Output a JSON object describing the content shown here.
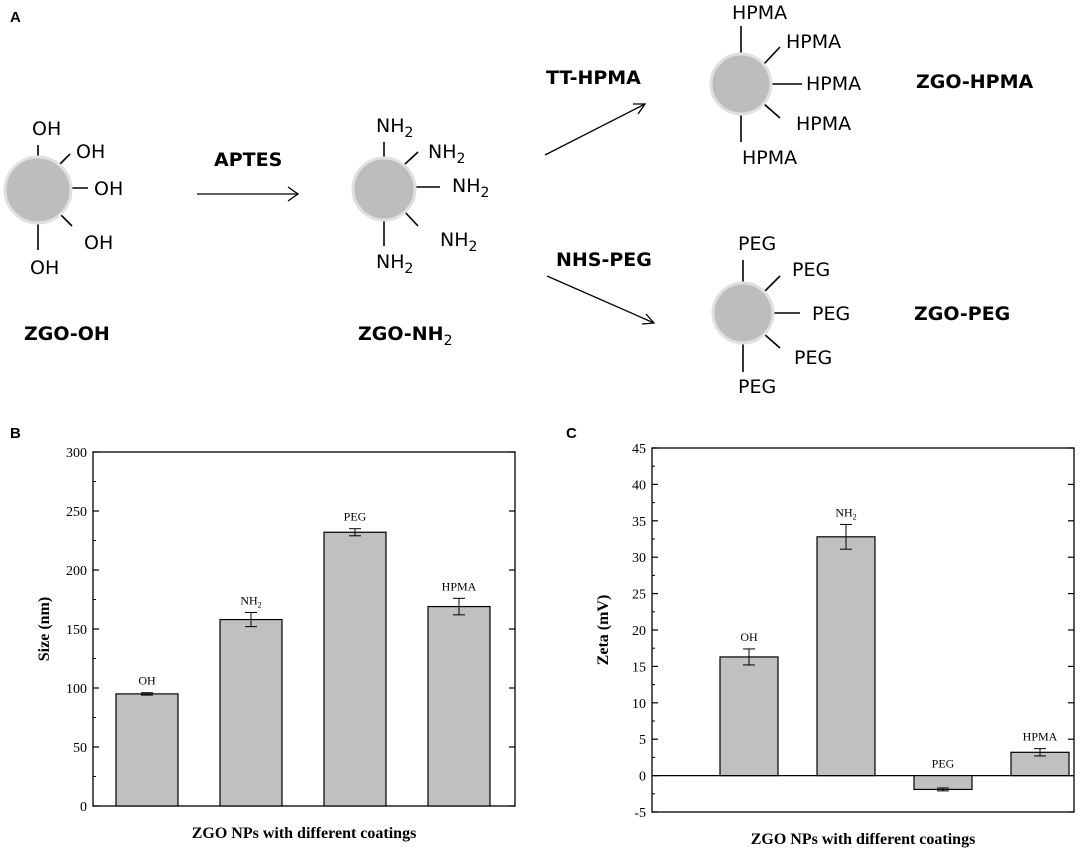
{
  "scheme": {
    "panel_label": "A",
    "particles": [
      {
        "id": "zgo-oh",
        "name": "ZGO-OH",
        "ligand": "OH"
      },
      {
        "id": "zgo-nh2",
        "name_main": "ZGO-NH",
        "name_sub": "2",
        "ligand_main": "NH",
        "ligand_sub": "2"
      },
      {
        "id": "zgo-hpma",
        "name": "ZGO-HPMA",
        "ligand": "HPMA"
      },
      {
        "id": "zgo-peg",
        "name": "ZGO-PEG",
        "ligand": "PEG"
      }
    ],
    "reagents": {
      "step1": "APTES",
      "step2a": "TT-HPMA",
      "step2b": "NHS-PEG"
    }
  },
  "chart_data": [
    {
      "panel_label": "B",
      "type": "bar",
      "categories": [
        "OH",
        "NH2",
        "PEG",
        "HPMA"
      ],
      "category_labels": [
        {
          "main": "OH",
          "sub": ""
        },
        {
          "main": "NH",
          "sub": "2"
        },
        {
          "main": "PEG",
          "sub": ""
        },
        {
          "main": "HPMA",
          "sub": ""
        }
      ],
      "values": [
        95,
        158,
        232,
        169
      ],
      "errors": [
        1,
        6,
        3,
        7
      ],
      "xlabel": "ZGO NPs with different coatings",
      "ylabel": "Size (nm)",
      "ylim": [
        0,
        300
      ],
      "yticks": [
        0,
        50,
        100,
        150,
        200,
        250,
        300
      ],
      "bar_color": "#c0c0c0"
    },
    {
      "panel_label": "C",
      "type": "bar",
      "categories": [
        "OH",
        "NH2",
        "PEG",
        "HPMA"
      ],
      "category_labels": [
        {
          "main": "OH",
          "sub": ""
        },
        {
          "main": "NH",
          "sub": "2"
        },
        {
          "main": "PEG",
          "sub": ""
        },
        {
          "main": "HPMA",
          "sub": ""
        }
      ],
      "values": [
        16.3,
        32.8,
        -1.9,
        3.2
      ],
      "errors": [
        1.1,
        1.7,
        0.2,
        0.5
      ],
      "xlabel": "ZGO NPs with different coatings",
      "ylabel": "Zeta (mV)",
      "ylim": [
        -5,
        45
      ],
      "yticks": [
        -5,
        0,
        5,
        10,
        15,
        20,
        25,
        30,
        35,
        40,
        45
      ],
      "bar_color": "#c0c0c0"
    }
  ]
}
